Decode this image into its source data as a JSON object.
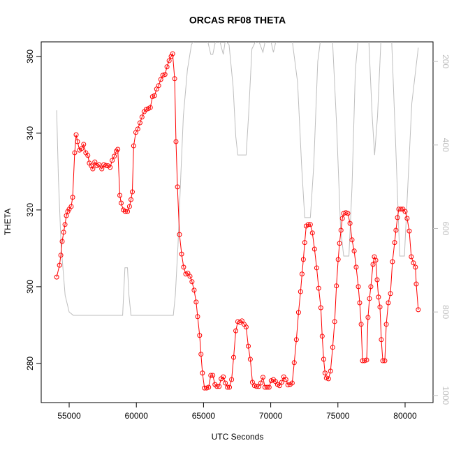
{
  "chart_data": {
    "type": "line",
    "title": "ORCAS RF08 THETA",
    "x_label": "UTC Seconds",
    "y_label": "THETA",
    "xlim": [
      52920,
      82080
    ],
    "ylim": [
      269.8,
      363.8
    ],
    "y2lim": [
      1017,
      153
    ],
    "xticks": [
      55000,
      60000,
      65000,
      70000,
      75000,
      80000
    ],
    "yticks": [
      280,
      300,
      320,
      340,
      360
    ],
    "y2ticks": [
      200,
      400,
      600,
      800,
      1000
    ],
    "series": [
      {
        "color": "#ff0000",
        "markers": true,
        "x": [
          54070,
          54280,
          54380,
          54480,
          54590,
          54690,
          54790,
          54900,
          55000,
          55150,
          55260,
          55410,
          55520,
          55620,
          55770,
          55930,
          56080,
          56240,
          56390,
          56500,
          56650,
          56760,
          56910,
          57070,
          57220,
          57430,
          57580,
          57740,
          57890,
          58050,
          58200,
          58360,
          58510,
          58620,
          58770,
          58870,
          59030,
          59180,
          59340,
          59490,
          59600,
          59700,
          59800,
          59960,
          60110,
          60270,
          60420,
          60580,
          60730,
          60890,
          61040,
          61200,
          61350,
          61510,
          61660,
          61820,
          61970,
          62130,
          62280,
          62440,
          62590,
          62700,
          62850,
          62950,
          63060,
          63210,
          63370,
          63520,
          63680,
          63830,
          63990,
          64140,
          64300,
          64450,
          64560,
          64710,
          64810,
          64920,
          65070,
          65230,
          65380,
          65540,
          65690,
          65850,
          66000,
          66160,
          66310,
          66470,
          66620,
          66780,
          66930,
          67090,
          67240,
          67400,
          67550,
          67710,
          67860,
          68020,
          68170,
          68330,
          68480,
          68640,
          68790,
          68950,
          69110,
          69260,
          69420,
          69570,
          69730,
          69880,
          70040,
          70200,
          70350,
          70510,
          70660,
          70820,
          70970,
          71130,
          71280,
          71440,
          71600,
          71750,
          71910,
          72070,
          72220,
          72330,
          72430,
          72530,
          72640,
          72790,
          72950,
          73100,
          73260,
          73420,
          73570,
          73730,
          73830,
          73940,
          74040,
          74140,
          74300,
          74450,
          74610,
          74760,
          74890,
          75020,
          75120,
          75230,
          75330,
          75430,
          75590,
          75740,
          75900,
          76050,
          76210,
          76360,
          76520,
          76620,
          76730,
          76830,
          76980,
          77140,
          77240,
          77350,
          77450,
          77610,
          77710,
          77820,
          77920,
          78020,
          78130,
          78230,
          78340,
          78490,
          78600,
          78750,
          78910,
          79060,
          79220,
          79320,
          79430,
          79530,
          79690,
          79840,
          80000,
          80150,
          80310,
          80460,
          80620,
          80770,
          80830,
          80980
        ],
        "values": [
          302.5,
          305.6,
          308.2,
          311.8,
          314.2,
          316.2,
          318.5,
          319.6,
          320.2,
          320.9,
          323.3,
          334.9,
          339.6,
          337.8,
          335.6,
          336,
          337.1,
          334.9,
          334.2,
          332.2,
          331.5,
          330.7,
          332.5,
          331.5,
          331.8,
          330.7,
          331.8,
          331.6,
          331.5,
          331.1,
          332.9,
          334,
          335.3,
          335.8,
          323.8,
          321.8,
          320,
          319.6,
          319.6,
          320.9,
          322.7,
          324.7,
          336.7,
          340.2,
          341.1,
          342.7,
          344.2,
          345.6,
          346.2,
          346.4,
          346.7,
          349.5,
          349.8,
          351.5,
          352.4,
          354,
          355.1,
          355.3,
          357.3,
          358.9,
          360,
          360.7,
          354.2,
          337.8,
          326,
          313.6,
          308.5,
          305.1,
          303.3,
          303.5,
          302.7,
          301.3,
          299.1,
          296,
          292.2,
          287.3,
          282.4,
          277.5,
          273.6,
          273.6,
          273.8,
          276.9,
          276.9,
          274.5,
          274,
          274,
          276,
          276.5,
          274.9,
          273.8,
          273.8,
          275.8,
          281.6,
          288.5,
          290.9,
          290.7,
          291.1,
          290.2,
          289.5,
          284.5,
          281.1,
          275.1,
          274.2,
          274,
          274,
          274.9,
          276.4,
          273.8,
          273.8,
          273.8,
          275.5,
          275.8,
          275.3,
          274.5,
          274.2,
          275.1,
          276.5,
          275.8,
          274.4,
          274.5,
          274.9,
          280.2,
          286.2,
          293.3,
          298.7,
          303.3,
          307.1,
          311.5,
          315.8,
          316.2,
          316.2,
          314,
          309.8,
          304.9,
          299.6,
          294.5,
          287.1,
          281.1,
          277.5,
          276.2,
          276,
          278,
          284.2,
          290.9,
          300.2,
          307.1,
          311.3,
          314.7,
          317.8,
          319.1,
          319.3,
          319.1,
          316.5,
          312.2,
          309.3,
          305.1,
          300,
          295.8,
          290.2,
          280.7,
          280.7,
          280.9,
          292,
          296.9,
          300,
          305.8,
          307.8,
          306.9,
          301.8,
          297.3,
          294.7,
          286.2,
          280.7,
          280.7,
          290.2,
          295.8,
          298.2,
          306.5,
          311.5,
          314.7,
          318,
          320.2,
          320.2,
          320.2,
          319.6,
          317.8,
          314.5,
          307.8,
          306.2,
          305.1,
          300.7,
          294
        ]
      },
      {
        "color": "#bebebe",
        "axis": "y2",
        "x": [
          54070,
          54200,
          54400,
          54700,
          55000,
          55310,
          58980,
          59050,
          59150,
          59340,
          59450,
          59600,
          62750,
          62900,
          63100,
          63300,
          63500,
          63800,
          64100,
          64400,
          64970,
          65300,
          65540,
          65690,
          65900,
          66200,
          66470,
          66620,
          66900,
          67200,
          67400,
          67550,
          68170,
          68350,
          68600,
          68900,
          69100,
          69420,
          69600,
          70000,
          70200,
          70400,
          71000,
          71600,
          72000,
          72300,
          72530,
          72950,
          73200,
          73500,
          73700,
          74600,
          74900,
          75200,
          75430,
          75820,
          76050,
          76300,
          76500,
          77300,
          77550,
          77730,
          77950,
          78200,
          79000,
          79300,
          79600,
          79950,
          80200,
          80500,
          80980
        ],
        "values": [
          317,
          480,
          640,
          760,
          800,
          808,
          808,
          760,
          694,
          694,
          760,
          808,
          808,
          760,
          640,
          480,
          330,
          220,
          160,
          140,
          140,
          150,
          183,
          183,
          150,
          150,
          183,
          150,
          160,
          260,
          380,
          424,
          424,
          330,
          170,
          150,
          150,
          178,
          150,
          150,
          178,
          150,
          150,
          150,
          250,
          450,
          574,
          574,
          450,
          200,
          150,
          150,
          350,
          600,
          666,
          666,
          500,
          220,
          150,
          150,
          330,
          424,
          330,
          150,
          150,
          400,
          666,
          666,
          500,
          300,
          167
        ]
      }
    ]
  }
}
